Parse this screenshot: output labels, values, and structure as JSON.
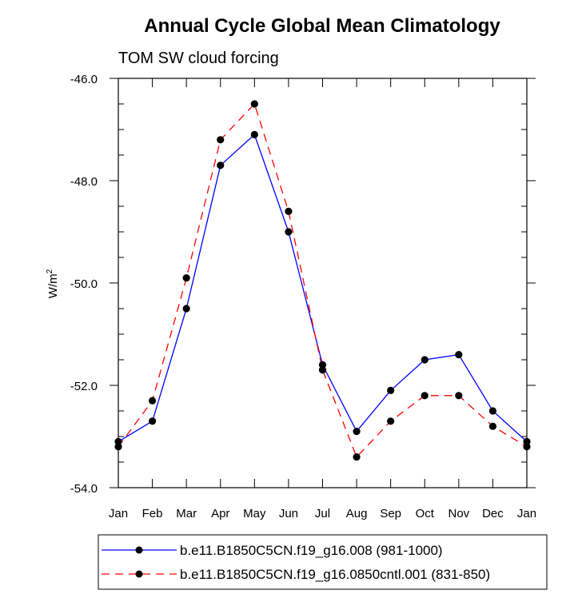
{
  "chart_data": {
    "type": "line",
    "title": "Annual Cycle Global Mean Climatology",
    "subtitle": "TOM SW cloud forcing",
    "xlabel": "",
    "ylabel_base": "W/m",
    "ylabel_sup": "2",
    "categories": [
      "Jan",
      "Feb",
      "Mar",
      "Apr",
      "May",
      "Jun",
      "Jul",
      "Aug",
      "Sep",
      "Oct",
      "Nov",
      "Dec",
      "Jan"
    ],
    "ylim": [
      -54.0,
      -46.0
    ],
    "yticks": [
      "-46.0",
      "-48.0",
      "-50.0",
      "-52.0",
      "-54.0"
    ],
    "ytick_values": [
      -46.0,
      -48.0,
      -50.0,
      -52.0,
      -54.0
    ],
    "grid": false,
    "legend_position": "bottom",
    "series": [
      {
        "name": "b.e11.B1850C5CN.f19_g16.008 (981-1000)",
        "color": "#0000ff",
        "dash": "solid",
        "values": [
          -53.1,
          -52.7,
          -50.5,
          -47.7,
          -47.1,
          -49.0,
          -51.6,
          -52.9,
          -52.1,
          -51.5,
          -51.4,
          -52.5,
          -53.1
        ]
      },
      {
        "name": "b.e11.B1850C5CN.f19_g16.0850cntl.001 (831-850)",
        "color": "#ff0000",
        "dash": "dashed",
        "values": [
          -53.2,
          -52.3,
          -49.9,
          -47.2,
          -46.5,
          -48.6,
          -51.7,
          -53.4,
          -52.7,
          -52.2,
          -52.2,
          -52.8,
          -53.2
        ]
      }
    ]
  }
}
